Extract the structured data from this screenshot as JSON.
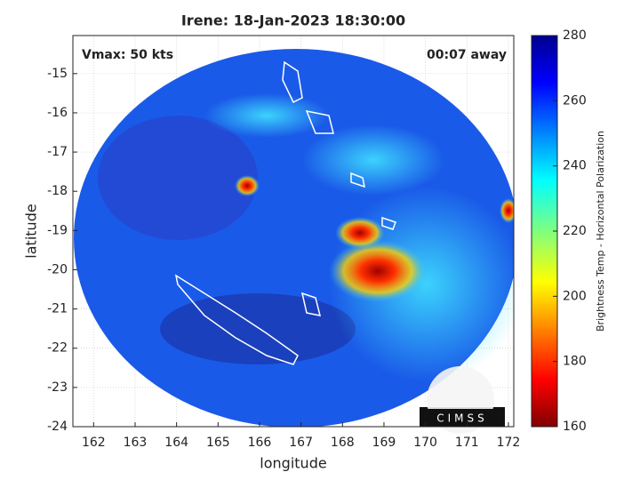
{
  "title": "Irene: 18-Jan-2023 18:30:00",
  "annotations": {
    "vmax": "Vmax: 50 kts",
    "away": "00:07 away"
  },
  "x_axis": {
    "label": "longitude",
    "lim": [
      161.5,
      172.13
    ],
    "ticks": [
      162,
      163,
      164,
      165,
      166,
      167,
      168,
      169,
      170,
      171,
      172
    ]
  },
  "y_axis": {
    "label": "latitude",
    "lim": [
      -24,
      -14.03
    ],
    "ticks": [
      -24,
      -23,
      -22,
      -21,
      -20,
      -19,
      -18,
      -17,
      -16,
      -15
    ]
  },
  "colorbar": {
    "label": "Brightness Temp - Horizontal Polarization",
    "lim": [
      160,
      280
    ],
    "ticks": [
      160,
      180,
      200,
      220,
      240,
      260,
      280
    ]
  },
  "logo": "CIMSS"
}
